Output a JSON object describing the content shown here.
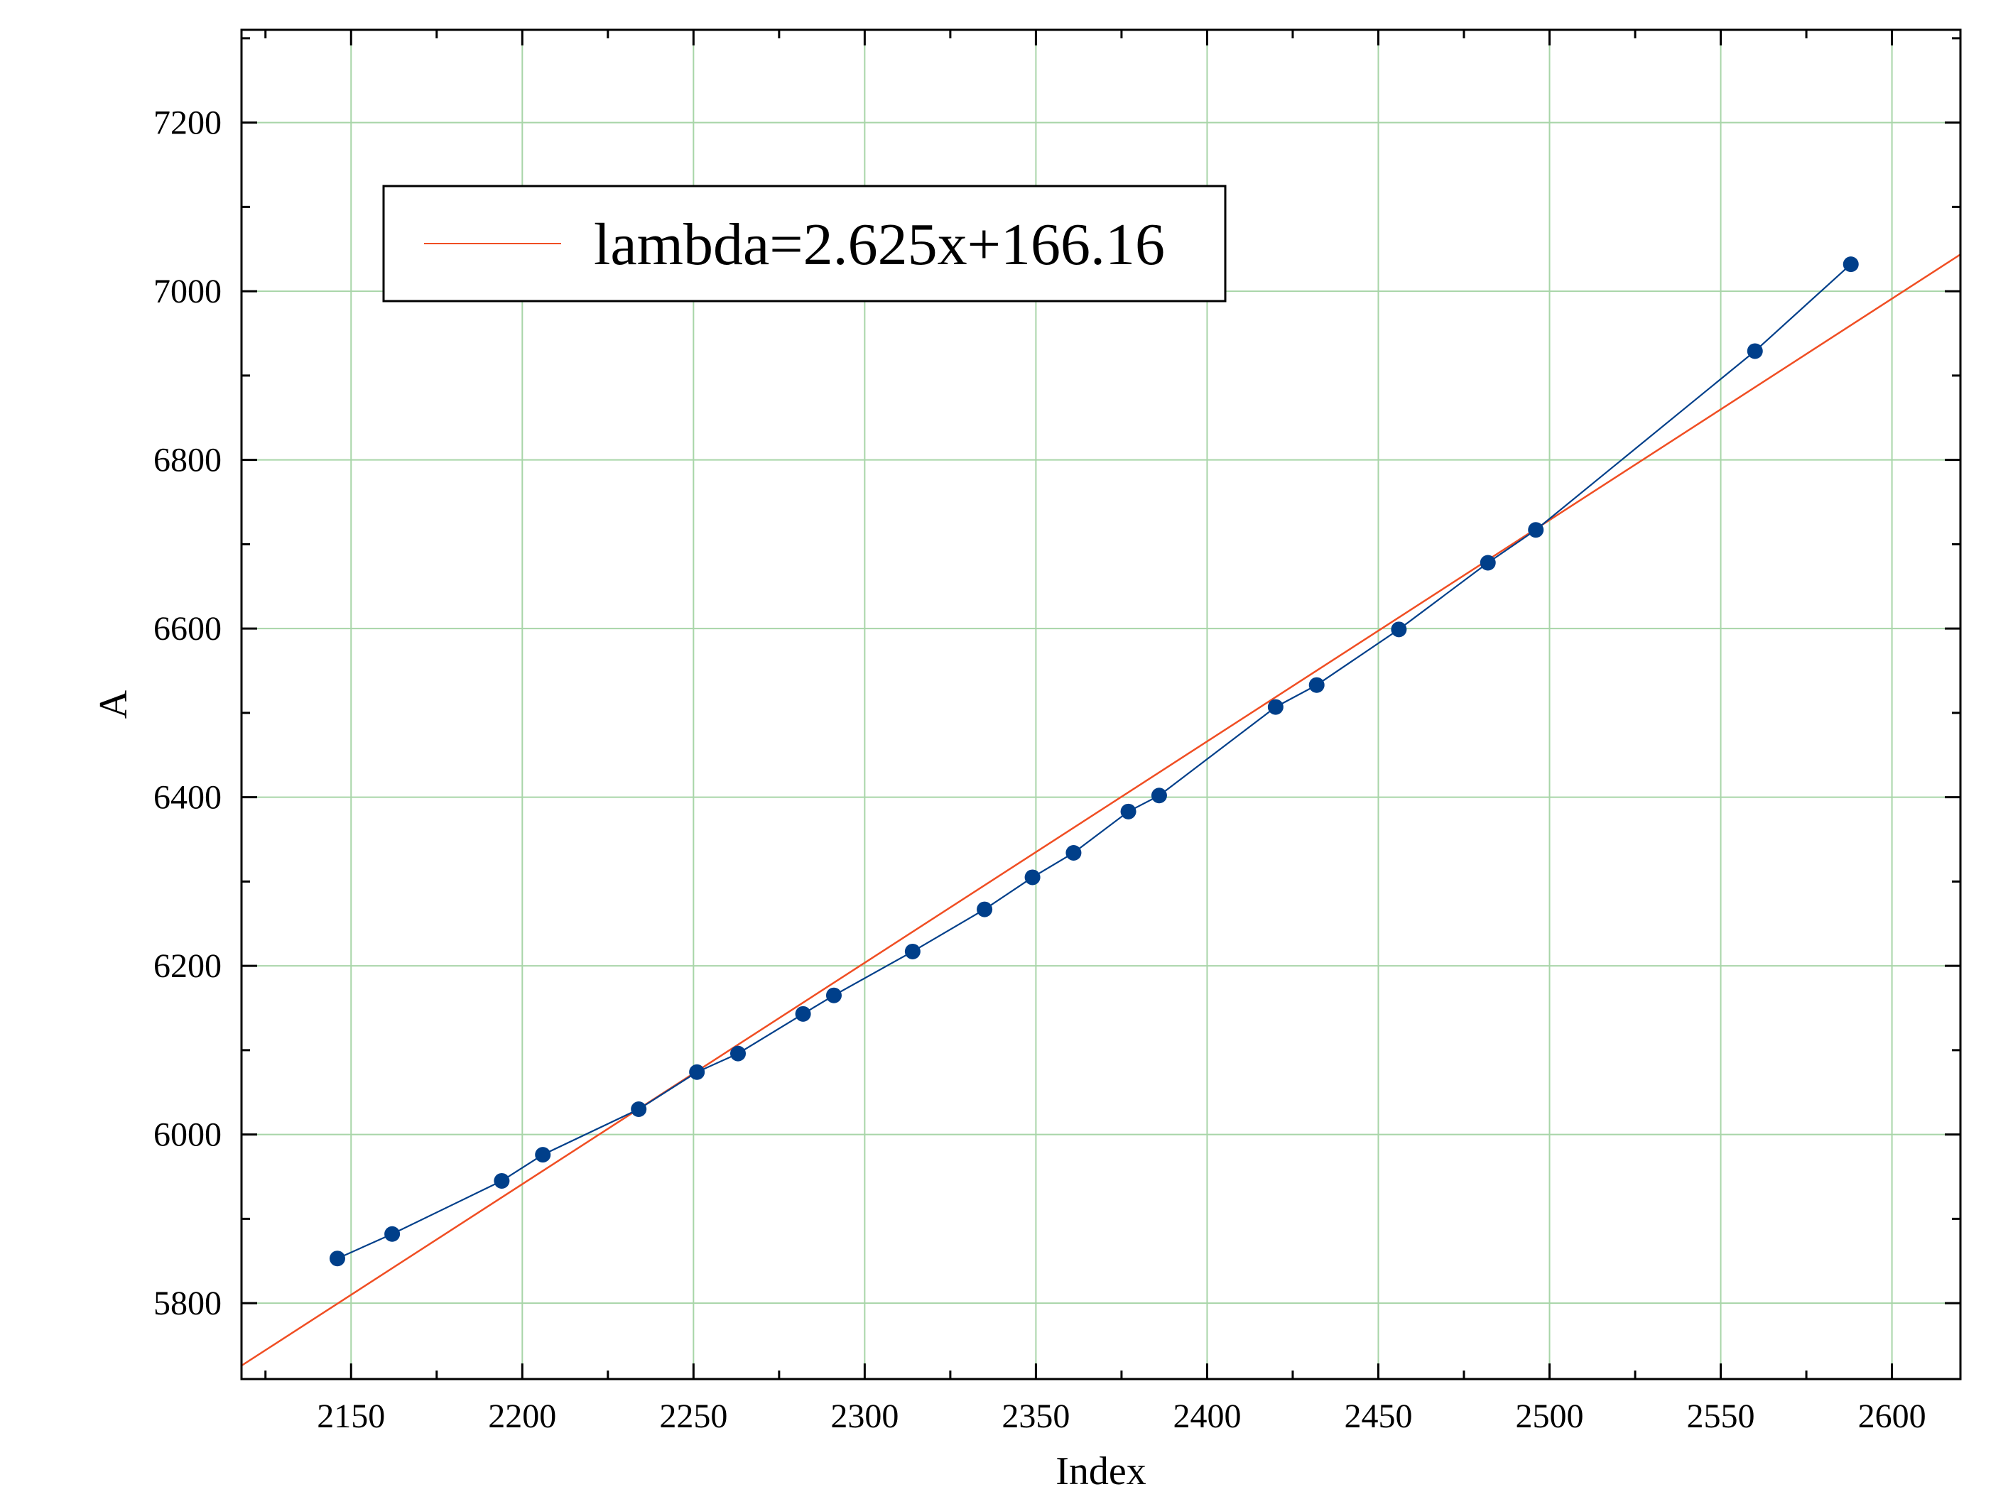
{
  "chart_data": {
    "type": "scatter",
    "xlabel": "Index",
    "ylabel": "A",
    "xlim": [
      2118,
      2620
    ],
    "ylim": [
      5710,
      7310
    ],
    "xticks": [
      2150,
      2200,
      2250,
      2300,
      2350,
      2400,
      2450,
      2500,
      2550,
      2600
    ],
    "yticks": [
      5800,
      6000,
      6200,
      6400,
      6600,
      6800,
      7000,
      7200
    ],
    "grid": true,
    "legend_position": "top-left",
    "series": [
      {
        "kind": "line-with-markers",
        "color": "#003f8a",
        "x": [
          2146,
          2162,
          2194,
          2206,
          2234,
          2251,
          2263,
          2282,
          2291,
          2314,
          2335,
          2349,
          2361,
          2377,
          2386,
          2420,
          2432,
          2456,
          2482,
          2496,
          2560,
          2588
        ],
        "y": [
          5853,
          5882,
          5945,
          5976,
          6030,
          6074,
          6096,
          6143,
          6165,
          6217,
          6267,
          6305,
          6334,
          6383,
          6402,
          6507,
          6533,
          6599,
          6678,
          6717,
          6929,
          7032
        ]
      },
      {
        "name": "lambda=2.625x+166.16",
        "kind": "fit-line",
        "color": "#f04e23",
        "slope": 2.625,
        "intercept": 166.16
      }
    ]
  }
}
